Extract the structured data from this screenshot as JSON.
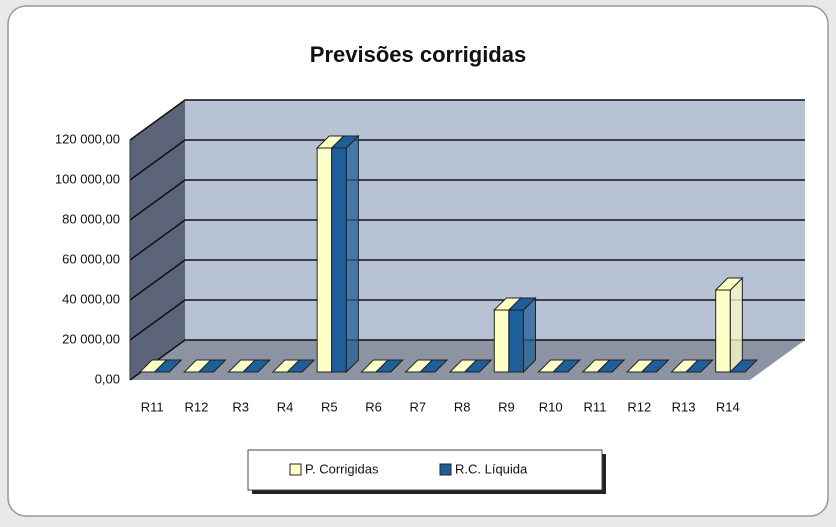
{
  "chart_data": {
    "type": "bar3d",
    "title": "Previsões corrigidas",
    "categories": [
      "R11",
      "R12",
      "R3",
      "R4",
      "R5",
      "R6",
      "R7",
      "R8",
      "R9",
      "R10",
      "R11",
      "R12",
      "R13",
      "R14"
    ],
    "series": [
      {
        "name": "P. Corrigidas",
        "color": "#ffffc8",
        "values": [
          0,
          0,
          0,
          0,
          112000,
          0,
          0,
          0,
          31000,
          0,
          0,
          0,
          0,
          41000
        ]
      },
      {
        "name": "R.C. Líquida",
        "color": "#1f5f99",
        "values": [
          0,
          0,
          0,
          0,
          112000,
          0,
          0,
          0,
          31000,
          0,
          0,
          0,
          0,
          0
        ]
      }
    ],
    "ylim": [
      0,
      120000
    ],
    "yticks": [
      {
        "value": 0,
        "label": "0,00"
      },
      {
        "value": 20000,
        "label": "20 000,00"
      },
      {
        "value": 40000,
        "label": "40 000,00"
      },
      {
        "value": 60000,
        "label": "60 000,00"
      },
      {
        "value": 80000,
        "label": "80 000,00"
      },
      {
        "value": 100000,
        "label": "100 000,00"
      },
      {
        "value": 120000,
        "label": "120 000,00"
      }
    ],
    "grid": true,
    "legend": "bottom"
  }
}
